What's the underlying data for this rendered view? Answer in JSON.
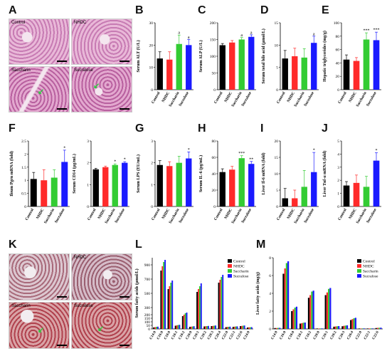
{
  "panel_letters": [
    "A",
    "B",
    "C",
    "D",
    "E",
    "F",
    "G",
    "H",
    "I",
    "J",
    "K",
    "L",
    "M"
  ],
  "colors": {
    "Control": "#000000",
    "NHDC": "#ff2a2a",
    "Saccharin": "#33cc33",
    "Sucralose": "#1a1aff"
  },
  "histology": {
    "A": {
      "control": "Control",
      "nhdc": "NHDC",
      "saccharin": "Saccharin",
      "sucralose": "Sucralose",
      "tint": "#c77bb3",
      "bg": "#e9b8d8"
    },
    "K": {
      "control": "",
      "nhdc": "NHDC",
      "saccharin": "Saccharin",
      "sucralose": "Sucralose",
      "tint": "#a86a7a",
      "bg": "#dcc7d0"
    }
  },
  "chart_data": [
    {
      "id": "B",
      "type": "bar",
      "categories": [
        "Control",
        "NHDC",
        "Saccharin",
        "Sucralose"
      ],
      "values": [
        14,
        13.5,
        20.5,
        20
      ],
      "errors": [
        3,
        3.5,
        4,
        2.5
      ],
      "sig": [
        "",
        "",
        "a",
        "a"
      ],
      "ylabel": "Serum ALT (U/L)",
      "ylim": [
        0,
        30
      ],
      "ticks": [
        0,
        10,
        20,
        30
      ]
    },
    {
      "id": "C",
      "type": "bar",
      "categories": [
        "Control",
        "NHDC",
        "Saccharin",
        "Sucralose"
      ],
      "values": [
        133,
        141,
        150,
        158
      ],
      "errors": [
        5,
        6,
        6,
        6
      ],
      "sig": [
        "",
        "",
        "a",
        "a"
      ],
      "ylabel": "Serum ALP (U/L)",
      "ylim": [
        0,
        200
      ],
      "ticks": [
        0,
        50,
        100,
        150,
        200
      ]
    },
    {
      "id": "D",
      "type": "bar",
      "categories": [
        "Control",
        "NHDC",
        "Saccharin",
        "Sucralose"
      ],
      "values": [
        7,
        7.5,
        7.2,
        10.5
      ],
      "errors": [
        1.8,
        1.8,
        2,
        1.5
      ],
      "sig": [
        "",
        "",
        "",
        "a"
      ],
      "ylabel": "Serum total bile acid (μmol/L)",
      "ylim": [
        0,
        15
      ],
      "ticks": [
        0,
        5,
        10,
        15
      ]
    },
    {
      "id": "E",
      "type": "bar",
      "categories": [
        "Control",
        "NHDC",
        "Saccharin",
        "Sucralose"
      ],
      "values": [
        45,
        43,
        75,
        74
      ],
      "errors": [
        7,
        5,
        10,
        12
      ],
      "sig": [
        "",
        "",
        "***",
        "***"
      ],
      "ylabel": "Hepatic triglycerides (mg/g)",
      "ylim": [
        0,
        100
      ],
      "ticks": [
        0,
        20,
        40,
        60,
        80,
        100
      ]
    },
    {
      "id": "F1",
      "type": "bar",
      "categories": [
        "Control",
        "NHDC",
        "Saccharin",
        "Sucralose"
      ],
      "values": [
        1.05,
        1.0,
        1.1,
        1.7
      ],
      "errors": [
        0.25,
        0.4,
        0.3,
        0.45
      ],
      "sig": [
        "",
        "",
        "",
        "*"
      ],
      "ylabel": "Ileum Pgrn mRNA (fold)",
      "ylim": [
        0,
        2.5
      ],
      "ticks": [
        0,
        0.5,
        1.0,
        1.5,
        2.0,
        2.5
      ]
    },
    {
      "id": "F2",
      "type": "bar",
      "categories": [
        "Control",
        "NHDC",
        "Saccharin",
        "Sucralose"
      ],
      "values": [
        1.7,
        1.8,
        1.9,
        2.0
      ],
      "errors": [
        0.05,
        0.05,
        0.05,
        0.05
      ],
      "sig": [
        "",
        "",
        "*",
        "*"
      ],
      "ylabel": "Serum CD14 (μg/mL)",
      "ylim": [
        0,
        3
      ],
      "ticks": [
        0,
        1,
        2,
        3
      ]
    },
    {
      "id": "G",
      "type": "bar",
      "categories": [
        "Control",
        "NHDC",
        "Saccharin",
        "Sucralose"
      ],
      "values": [
        1.9,
        1.85,
        2.0,
        2.2
      ],
      "errors": [
        0.2,
        0.2,
        0.3,
        0.3
      ],
      "sig": [
        "",
        "",
        "",
        "*"
      ],
      "ylabel": "Serum LPS (EU/mL)",
      "ylim": [
        0,
        3
      ],
      "ticks": [
        0,
        1,
        2,
        3
      ]
    },
    {
      "id": "H",
      "type": "bar",
      "categories": [
        "Control",
        "NHDC",
        "Saccharin",
        "Sucralose"
      ],
      "values": [
        42,
        45,
        59,
        52
      ],
      "errors": [
        4,
        4,
        3,
        3
      ],
      "sig": [
        "",
        "",
        "***",
        "**"
      ],
      "ylabel": "Serum IL-6 (pg/mL)",
      "ylim": [
        0,
        80
      ],
      "ticks": [
        0,
        20,
        40,
        60,
        80
      ]
    },
    {
      "id": "I",
      "type": "bar",
      "categories": [
        "Control",
        "NHDC",
        "Saccharin",
        "Sucralose"
      ],
      "values": [
        2.5,
        2.5,
        6,
        10.5
      ],
      "errors": [
        3,
        2.5,
        5,
        6
      ],
      "sig": [
        "",
        "",
        "",
        "*"
      ],
      "ylabel": "Liver Il-6 mRNA (fold)",
      "ylim": [
        0,
        20
      ],
      "ticks": [
        0,
        5,
        10,
        15,
        20
      ]
    },
    {
      "id": "J",
      "type": "bar",
      "categories": [
        "Control",
        "NHDC",
        "Saccharin",
        "Sucralose"
      ],
      "values": [
        1.6,
        1.8,
        1.5,
        3.5
      ],
      "errors": [
        0.3,
        0.6,
        0.8,
        0.6
      ],
      "sig": [
        "",
        "",
        "",
        "*"
      ],
      "ylabel": "Liver Tnf-α mRNA (fold)",
      "ylim": [
        0,
        5
      ],
      "ticks": [
        0,
        1,
        2,
        3,
        4,
        5
      ]
    },
    {
      "id": "L",
      "type": "bar",
      "categories": [
        "C14:0",
        "C16:0",
        "C18:0",
        "C18:1",
        "C18:2",
        "C20:0",
        "C20:1",
        "C20:2",
        "C20:3",
        "C20:4",
        "C22:0",
        "C22:1",
        "C22:6",
        "C24:0"
      ],
      "series": [
        {
          "name": "Control",
          "values": [
            22,
            820,
            560,
            45,
            180,
            30,
            520,
            35,
            40,
            650,
            25,
            30,
            40,
            20
          ]
        },
        {
          "name": "NHDC",
          "values": [
            25,
            880,
            600,
            50,
            200,
            32,
            560,
            38,
            42,
            690,
            28,
            32,
            42,
            22
          ]
        },
        {
          "name": "Saccharin",
          "values": [
            30,
            940,
            650,
            55,
            220,
            35,
            600,
            40,
            46,
            730,
            30,
            35,
            46,
            24
          ]
        },
        {
          "name": "Sucralose",
          "values": [
            32,
            970,
            680,
            58,
            230,
            38,
            640,
            42,
            48,
            760,
            32,
            36,
            48,
            25
          ]
        }
      ],
      "ylabel": "Serum fatty acids (μmol/L)",
      "ylim": [
        0,
        1000
      ],
      "ticks": [
        0,
        50,
        100,
        150,
        200,
        300,
        500,
        700,
        900
      ]
    },
    {
      "id": "M",
      "type": "bar",
      "categories": [
        "C14:0",
        "C16:0",
        "C18:0",
        "C18:1",
        "C18:2",
        "C20:0",
        "C20:1",
        "C20:2",
        "C20:3",
        "C20:4",
        "C22:0",
        "C22:1",
        "C22:6"
      ],
      "series": [
        {
          "name": "Control",
          "values": [
            0.1,
            6.2,
            2.0,
            0.6,
            3.5,
            0.05,
            3.8,
            0.25,
            0.3,
            1.0,
            0.05,
            0.05,
            0.1
          ]
        },
        {
          "name": "NHDC",
          "values": [
            0.1,
            6.8,
            2.2,
            0.65,
            3.8,
            0.05,
            4.1,
            0.28,
            0.35,
            1.1,
            0.05,
            0.05,
            0.12
          ]
        },
        {
          "name": "Saccharin",
          "values": [
            0.12,
            7.4,
            2.4,
            0.7,
            4.2,
            0.06,
            4.5,
            0.3,
            0.38,
            1.2,
            0.06,
            0.06,
            0.13
          ]
        },
        {
          "name": "Sucralose",
          "values": [
            0.12,
            7.6,
            2.5,
            0.72,
            4.3,
            0.06,
            4.6,
            0.32,
            0.4,
            1.25,
            0.06,
            0.06,
            0.14
          ]
        }
      ],
      "ylabel": "Liver fatty acids (mg/g)",
      "ylim": [
        0,
        8
      ],
      "ticks": [
        0,
        2,
        4,
        6,
        8
      ]
    }
  ]
}
